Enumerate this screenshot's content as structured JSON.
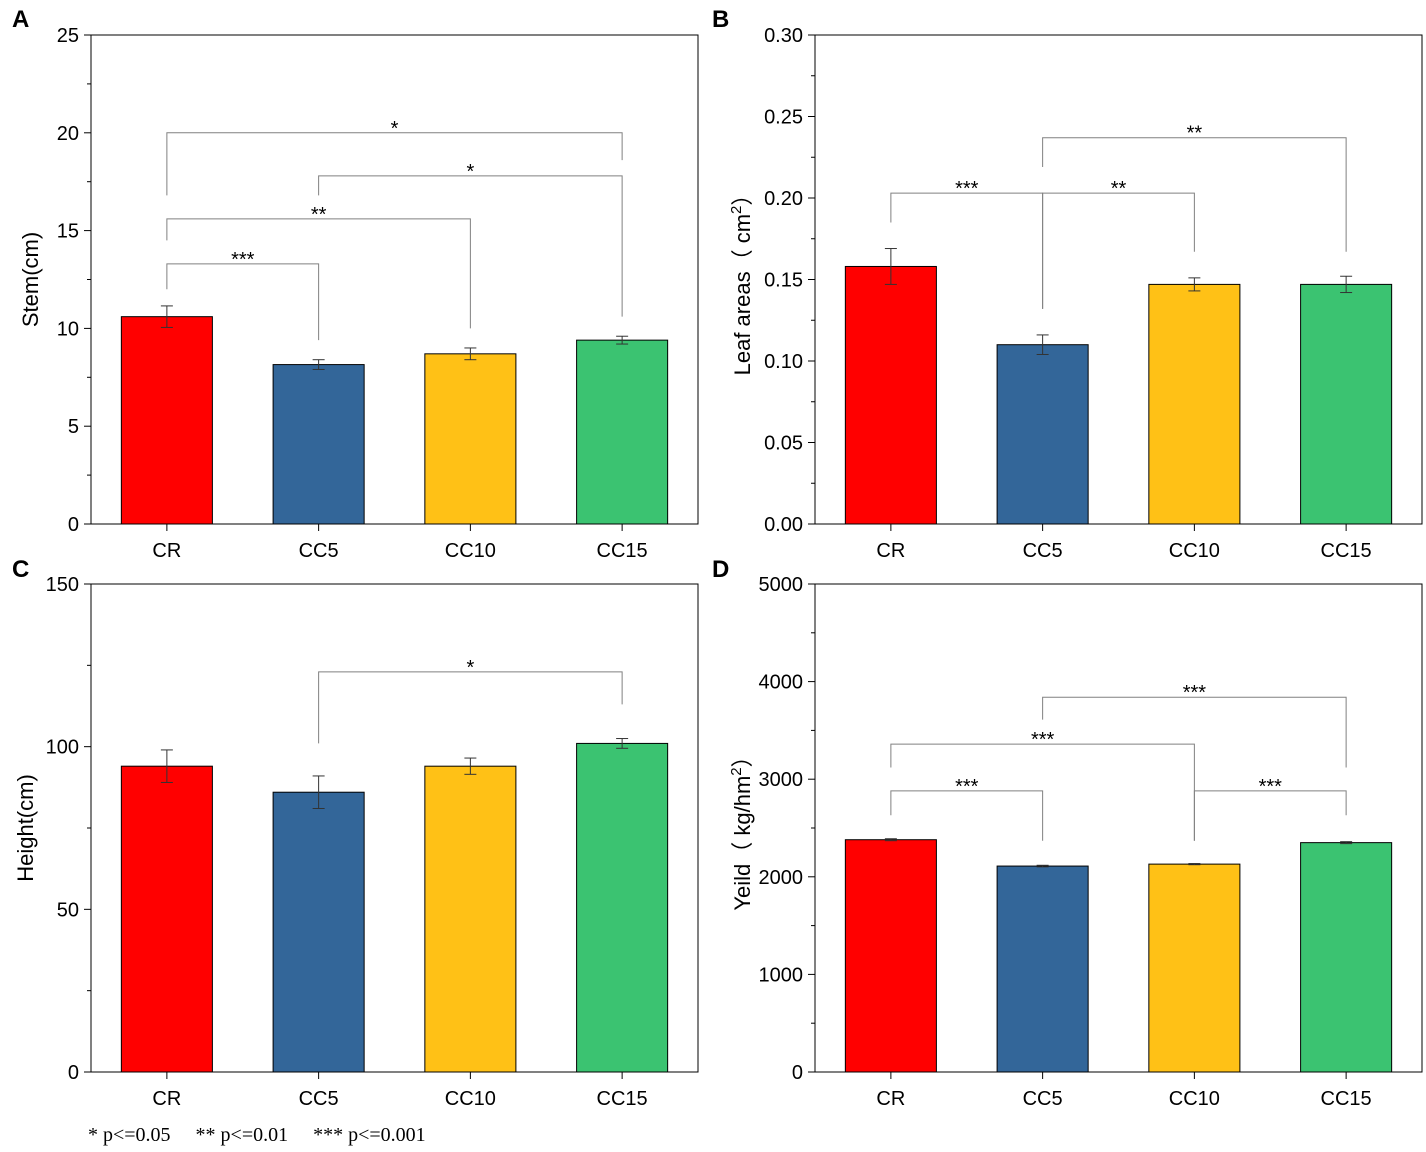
{
  "chart_data": [
    {
      "panel": "A",
      "type": "bar",
      "ylabel": "Stem(cm)",
      "ylim": [
        0,
        25
      ],
      "ticks": [
        "0",
        "5",
        "10",
        "15",
        "20",
        "25"
      ],
      "categories": [
        "CR",
        "CC5",
        "CC10",
        "CC15"
      ],
      "values": [
        10.6,
        8.15,
        8.7,
        9.4
      ],
      "errors": [
        0.55,
        0.25,
        0.3,
        0.2
      ],
      "colors": [
        "#ff0000",
        "#336699",
        "#ffc116",
        "#3bc371"
      ],
      "significance": [
        {
          "from": 0,
          "to": 3,
          "label": "*",
          "level": 20.0,
          "from_end": 16.8,
          "to_end": 18.6
        },
        {
          "from": 1,
          "to": 3,
          "label": "*",
          "level": 17.8,
          "from_end": 16.8,
          "to_end": 10.6
        },
        {
          "from": 0,
          "to": 2,
          "label": "**",
          "level": 15.6,
          "from_end": 14.5,
          "to_end": 10.0
        },
        {
          "from": 0,
          "to": 1,
          "label": "***",
          "level": 13.3,
          "from_end": 12.0,
          "to_end": 9.4
        }
      ]
    },
    {
      "panel": "B",
      "type": "bar",
      "ylabel": "Leaf areas（ cm",
      "ylabel_sup": "2",
      "ylabel_close": "）",
      "ylim": [
        0,
        0.3
      ],
      "ticks": [
        "0.00",
        "0.05",
        "0.10",
        "0.15",
        "0.20",
        "0.25",
        "0.30"
      ],
      "categories": [
        "CR",
        "CC5",
        "CC10",
        "CC15"
      ],
      "values": [
        0.158,
        0.11,
        0.147,
        0.147
      ],
      "errors": [
        0.011,
        0.006,
        0.004,
        0.005
      ],
      "colors": [
        "#ff0000",
        "#336699",
        "#ffc116",
        "#3bc371"
      ],
      "significance": [
        {
          "from": 1,
          "to": 3,
          "label": "**",
          "level": 0.237,
          "from_end": 0.219,
          "to_end": 0.167
        },
        {
          "from": 0,
          "to": 1,
          "label": "***",
          "level": 0.203,
          "from_end": 0.185,
          "to_end": 0.132
        },
        {
          "from": 1,
          "to": 2,
          "label": "**",
          "level": 0.203,
          "from_end": 0.132,
          "to_end": 0.167
        }
      ]
    },
    {
      "panel": "C",
      "type": "bar",
      "ylabel": "Height(cm)",
      "ylim": [
        0,
        150
      ],
      "ticks": [
        "0",
        "50",
        "100",
        "150"
      ],
      "categories": [
        "CR",
        "CC5",
        "CC10",
        "CC15"
      ],
      "values": [
        94,
        86,
        94,
        101
      ],
      "errors": [
        5,
        5,
        2.5,
        1.5
      ],
      "colors": [
        "#ff0000",
        "#336699",
        "#ffc116",
        "#3bc371"
      ],
      "significance": [
        {
          "from": 1,
          "to": 3,
          "label": "*",
          "level": 123,
          "from_end": 101,
          "to_end": 113
        }
      ]
    },
    {
      "panel": "D",
      "type": "bar",
      "ylabel": "Yeild（ kg/hm",
      "ylabel_sup": "2",
      "ylabel_close": "）",
      "ylim": [
        0,
        5000
      ],
      "ticks": [
        "0",
        "1000",
        "2000",
        "3000",
        "4000",
        "5000"
      ],
      "categories": [
        "CR",
        "CC5",
        "CC10",
        "CC15"
      ],
      "values": [
        2380,
        2110,
        2130,
        2350
      ],
      "errors": [
        10,
        8,
        6,
        10
      ],
      "colors": [
        "#ff0000",
        "#336699",
        "#ffc116",
        "#3bc371"
      ],
      "significance": [
        {
          "from": 1,
          "to": 3,
          "label": "***",
          "level": 3840,
          "from_end": 3610,
          "to_end": 3120
        },
        {
          "from": 0,
          "to": 2,
          "label": "***",
          "level": 3360,
          "from_end": 3120,
          "to_end": 2370
        },
        {
          "from": 0,
          "to": 1,
          "label": "***",
          "level": 2880,
          "from_end": 2630,
          "to_end": 2370
        },
        {
          "from": 2,
          "to": 3,
          "label": "***",
          "level": 2880,
          "from_end": 2370,
          "to_end": 2630
        }
      ]
    }
  ],
  "footnote": "* p<=0.05     ** p<=0.01     *** p<=0.001"
}
